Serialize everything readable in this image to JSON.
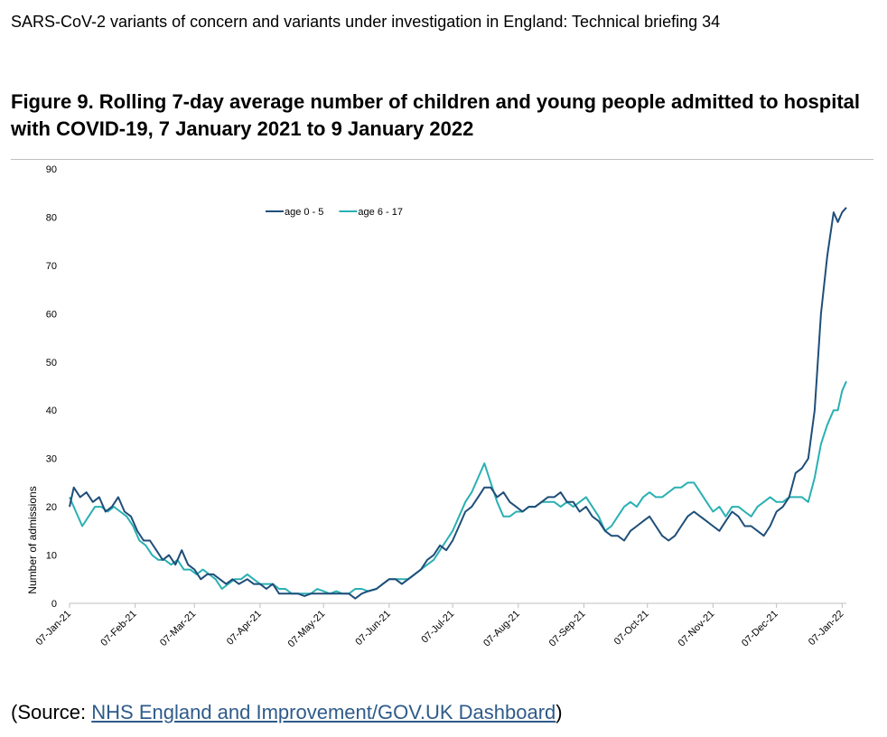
{
  "header": {
    "text": "SARS-CoV-2 variants of concern and variants under investigation in England: Technical briefing 34"
  },
  "figure": {
    "title": "Figure 9. Rolling 7-day average number of children and young people admitted to hospital with COVID-19, 7 January 2021 to 9 January 2022"
  },
  "source": {
    "prefix": "(Source: ",
    "link_text": "NHS England and Improvement/GOV.UK Dashboard",
    "suffix": ")"
  },
  "colors": {
    "age_0_5": "#1f4e79",
    "age_6_17": "#2ab0b3",
    "axis": "#bfbfbf"
  },
  "chart_data": {
    "type": "line",
    "title": "",
    "xlabel": "",
    "ylabel": "Number of admissions",
    "ylim": [
      0,
      90
    ],
    "yticks": [
      0,
      10,
      20,
      30,
      40,
      50,
      60,
      70,
      80,
      90
    ],
    "xlim": [
      "2021-01-07",
      "2022-01-09"
    ],
    "xticks": [
      "07-Jan-21",
      "07-Feb-21",
      "07-Mar-21",
      "07-Apr-21",
      "07-May-21",
      "07-Jun-21",
      "07-Jul-21",
      "07-Aug-21",
      "07-Sep-21",
      "07-Oct-21",
      "07-Nov-21",
      "07-Dec-21",
      "07-Jan-22"
    ],
    "legend": "top-center",
    "grid": false,
    "series": [
      {
        "name": "age 0 - 5",
        "color": "#1f4e79",
        "points": [
          [
            "2021-01-07",
            20
          ],
          [
            "2021-01-09",
            24
          ],
          [
            "2021-01-12",
            22
          ],
          [
            "2021-01-15",
            23
          ],
          [
            "2021-01-18",
            21
          ],
          [
            "2021-01-21",
            22
          ],
          [
            "2021-01-24",
            19
          ],
          [
            "2021-01-27",
            20
          ],
          [
            "2021-01-30",
            22
          ],
          [
            "2021-02-02",
            19
          ],
          [
            "2021-02-05",
            18
          ],
          [
            "2021-02-08",
            15
          ],
          [
            "2021-02-11",
            13
          ],
          [
            "2021-02-14",
            13
          ],
          [
            "2021-02-17",
            11
          ],
          [
            "2021-02-20",
            9
          ],
          [
            "2021-02-23",
            10
          ],
          [
            "2021-02-26",
            8
          ],
          [
            "2021-03-01",
            11
          ],
          [
            "2021-03-04",
            8
          ],
          [
            "2021-03-07",
            7
          ],
          [
            "2021-03-10",
            5
          ],
          [
            "2021-03-13",
            6
          ],
          [
            "2021-03-16",
            6
          ],
          [
            "2021-03-19",
            5
          ],
          [
            "2021-03-22",
            4
          ],
          [
            "2021-03-25",
            5
          ],
          [
            "2021-03-28",
            4
          ],
          [
            "2021-04-01",
            5
          ],
          [
            "2021-04-04",
            4
          ],
          [
            "2021-04-07",
            4
          ],
          [
            "2021-04-10",
            3
          ],
          [
            "2021-04-13",
            4
          ],
          [
            "2021-04-16",
            2
          ],
          [
            "2021-04-19",
            2
          ],
          [
            "2021-04-22",
            2
          ],
          [
            "2021-04-25",
            2
          ],
          [
            "2021-04-28",
            1.5
          ],
          [
            "2021-05-01",
            2
          ],
          [
            "2021-05-04",
            2
          ],
          [
            "2021-05-07",
            2
          ],
          [
            "2021-05-10",
            2
          ],
          [
            "2021-05-13",
            2
          ],
          [
            "2021-05-16",
            2
          ],
          [
            "2021-05-19",
            2
          ],
          [
            "2021-05-22",
            1
          ],
          [
            "2021-05-25",
            2
          ],
          [
            "2021-05-28",
            2.5
          ],
          [
            "2021-06-01",
            3
          ],
          [
            "2021-06-04",
            4
          ],
          [
            "2021-06-07",
            5
          ],
          [
            "2021-06-10",
            5
          ],
          [
            "2021-06-13",
            4
          ],
          [
            "2021-06-16",
            5
          ],
          [
            "2021-06-19",
            6
          ],
          [
            "2021-06-22",
            7
          ],
          [
            "2021-06-25",
            9
          ],
          [
            "2021-06-28",
            10
          ],
          [
            "2021-07-01",
            12
          ],
          [
            "2021-07-04",
            11
          ],
          [
            "2021-07-07",
            13
          ],
          [
            "2021-07-10",
            16
          ],
          [
            "2021-07-13",
            19
          ],
          [
            "2021-07-16",
            20
          ],
          [
            "2021-07-19",
            22
          ],
          [
            "2021-07-22",
            24
          ],
          [
            "2021-07-25",
            24
          ],
          [
            "2021-07-28",
            22
          ],
          [
            "2021-07-31",
            23
          ],
          [
            "2021-08-03",
            21
          ],
          [
            "2021-08-06",
            20
          ],
          [
            "2021-08-09",
            19
          ],
          [
            "2021-08-12",
            20
          ],
          [
            "2021-08-15",
            20
          ],
          [
            "2021-08-18",
            21
          ],
          [
            "2021-08-21",
            22
          ],
          [
            "2021-08-24",
            22
          ],
          [
            "2021-08-27",
            23
          ],
          [
            "2021-08-30",
            21
          ],
          [
            "2021-09-02",
            21
          ],
          [
            "2021-09-05",
            19
          ],
          [
            "2021-09-08",
            20
          ],
          [
            "2021-09-11",
            18
          ],
          [
            "2021-09-14",
            17
          ],
          [
            "2021-09-17",
            15
          ],
          [
            "2021-09-20",
            14
          ],
          [
            "2021-09-23",
            14
          ],
          [
            "2021-09-26",
            13
          ],
          [
            "2021-09-29",
            15
          ],
          [
            "2021-10-02",
            16
          ],
          [
            "2021-10-05",
            17
          ],
          [
            "2021-10-08",
            18
          ],
          [
            "2021-10-11",
            16
          ],
          [
            "2021-10-14",
            14
          ],
          [
            "2021-10-17",
            13
          ],
          [
            "2021-10-20",
            14
          ],
          [
            "2021-10-23",
            16
          ],
          [
            "2021-10-26",
            18
          ],
          [
            "2021-10-29",
            19
          ],
          [
            "2021-11-01",
            18
          ],
          [
            "2021-11-04",
            17
          ],
          [
            "2021-11-07",
            16
          ],
          [
            "2021-11-10",
            15
          ],
          [
            "2021-11-13",
            17
          ],
          [
            "2021-11-16",
            19
          ],
          [
            "2021-11-19",
            18
          ],
          [
            "2021-11-22",
            16
          ],
          [
            "2021-11-25",
            16
          ],
          [
            "2021-11-28",
            15
          ],
          [
            "2021-12-01",
            14
          ],
          [
            "2021-12-04",
            16
          ],
          [
            "2021-12-07",
            19
          ],
          [
            "2021-12-10",
            20
          ],
          [
            "2021-12-13",
            22
          ],
          [
            "2021-12-16",
            27
          ],
          [
            "2021-12-19",
            28
          ],
          [
            "2021-12-22",
            30
          ],
          [
            "2021-12-25",
            40
          ],
          [
            "2021-12-28",
            60
          ],
          [
            "2021-12-31",
            72
          ],
          [
            "2022-01-03",
            81
          ],
          [
            "2022-01-05",
            79
          ],
          [
            "2022-01-07",
            81
          ],
          [
            "2022-01-09",
            82
          ]
        ]
      },
      {
        "name": "age 6 - 17",
        "color": "#2ab0b3",
        "points": [
          [
            "2021-01-07",
            22
          ],
          [
            "2021-01-10",
            19
          ],
          [
            "2021-01-13",
            16
          ],
          [
            "2021-01-16",
            18
          ],
          [
            "2021-01-19",
            20
          ],
          [
            "2021-01-22",
            20
          ],
          [
            "2021-01-25",
            19
          ],
          [
            "2021-01-28",
            20
          ],
          [
            "2021-01-31",
            19
          ],
          [
            "2021-02-03",
            18
          ],
          [
            "2021-02-06",
            16
          ],
          [
            "2021-02-09",
            13
          ],
          [
            "2021-02-12",
            12
          ],
          [
            "2021-02-15",
            10
          ],
          [
            "2021-02-18",
            9
          ],
          [
            "2021-02-21",
            9
          ],
          [
            "2021-02-24",
            8
          ],
          [
            "2021-02-27",
            9
          ],
          [
            "2021-03-02",
            7
          ],
          [
            "2021-03-05",
            7
          ],
          [
            "2021-03-08",
            6
          ],
          [
            "2021-03-11",
            7
          ],
          [
            "2021-03-14",
            6
          ],
          [
            "2021-03-17",
            5
          ],
          [
            "2021-03-20",
            3
          ],
          [
            "2021-03-23",
            4
          ],
          [
            "2021-03-26",
            5
          ],
          [
            "2021-03-29",
            5
          ],
          [
            "2021-04-01",
            6
          ],
          [
            "2021-04-04",
            5
          ],
          [
            "2021-04-07",
            4
          ],
          [
            "2021-04-10",
            4
          ],
          [
            "2021-04-13",
            4
          ],
          [
            "2021-04-16",
            3
          ],
          [
            "2021-04-19",
            3
          ],
          [
            "2021-04-22",
            2
          ],
          [
            "2021-04-25",
            2
          ],
          [
            "2021-04-28",
            2
          ],
          [
            "2021-05-01",
            2
          ],
          [
            "2021-05-04",
            3
          ],
          [
            "2021-05-07",
            2.5
          ],
          [
            "2021-05-10",
            2
          ],
          [
            "2021-05-13",
            2.5
          ],
          [
            "2021-05-16",
            2
          ],
          [
            "2021-05-19",
            2
          ],
          [
            "2021-05-22",
            3
          ],
          [
            "2021-05-25",
            3
          ],
          [
            "2021-05-28",
            2.5
          ],
          [
            "2021-06-01",
            3
          ],
          [
            "2021-06-04",
            4
          ],
          [
            "2021-06-07",
            5
          ],
          [
            "2021-06-10",
            5
          ],
          [
            "2021-06-13",
            5
          ],
          [
            "2021-06-16",
            5
          ],
          [
            "2021-06-19",
            6
          ],
          [
            "2021-06-22",
            7
          ],
          [
            "2021-06-25",
            8
          ],
          [
            "2021-06-28",
            9
          ],
          [
            "2021-07-01",
            11
          ],
          [
            "2021-07-04",
            13
          ],
          [
            "2021-07-07",
            15
          ],
          [
            "2021-07-10",
            18
          ],
          [
            "2021-07-13",
            21
          ],
          [
            "2021-07-16",
            23
          ],
          [
            "2021-07-19",
            26
          ],
          [
            "2021-07-22",
            29
          ],
          [
            "2021-07-25",
            25
          ],
          [
            "2021-07-28",
            21
          ],
          [
            "2021-07-31",
            18
          ],
          [
            "2021-08-03",
            18
          ],
          [
            "2021-08-06",
            19
          ],
          [
            "2021-08-09",
            19
          ],
          [
            "2021-08-12",
            20
          ],
          [
            "2021-08-15",
            20
          ],
          [
            "2021-08-18",
            21
          ],
          [
            "2021-08-21",
            21
          ],
          [
            "2021-08-24",
            21
          ],
          [
            "2021-08-27",
            20
          ],
          [
            "2021-08-30",
            21
          ],
          [
            "2021-09-02",
            20
          ],
          [
            "2021-09-05",
            21
          ],
          [
            "2021-09-08",
            22
          ],
          [
            "2021-09-11",
            20
          ],
          [
            "2021-09-14",
            18
          ],
          [
            "2021-09-17",
            15
          ],
          [
            "2021-09-20",
            16
          ],
          [
            "2021-09-23",
            18
          ],
          [
            "2021-09-26",
            20
          ],
          [
            "2021-09-29",
            21
          ],
          [
            "2021-10-02",
            20
          ],
          [
            "2021-10-05",
            22
          ],
          [
            "2021-10-08",
            23
          ],
          [
            "2021-10-11",
            22
          ],
          [
            "2021-10-14",
            22
          ],
          [
            "2021-10-17",
            23
          ],
          [
            "2021-10-20",
            24
          ],
          [
            "2021-10-23",
            24
          ],
          [
            "2021-10-26",
            25
          ],
          [
            "2021-10-29",
            25
          ],
          [
            "2021-11-01",
            23
          ],
          [
            "2021-11-04",
            21
          ],
          [
            "2021-11-07",
            19
          ],
          [
            "2021-11-10",
            20
          ],
          [
            "2021-11-13",
            18
          ],
          [
            "2021-11-16",
            20
          ],
          [
            "2021-11-19",
            20
          ],
          [
            "2021-11-22",
            19
          ],
          [
            "2021-11-25",
            18
          ],
          [
            "2021-11-28",
            20
          ],
          [
            "2021-12-01",
            21
          ],
          [
            "2021-12-04",
            22
          ],
          [
            "2021-12-07",
            21
          ],
          [
            "2021-12-10",
            21
          ],
          [
            "2021-12-13",
            22
          ],
          [
            "2021-12-16",
            22
          ],
          [
            "2021-12-19",
            22
          ],
          [
            "2021-12-22",
            21
          ],
          [
            "2021-12-25",
            26
          ],
          [
            "2021-12-28",
            33
          ],
          [
            "2021-12-31",
            37
          ],
          [
            "2022-01-03",
            40
          ],
          [
            "2022-01-05",
            40
          ],
          [
            "2022-01-07",
            44
          ],
          [
            "2022-01-09",
            46
          ]
        ]
      }
    ]
  }
}
